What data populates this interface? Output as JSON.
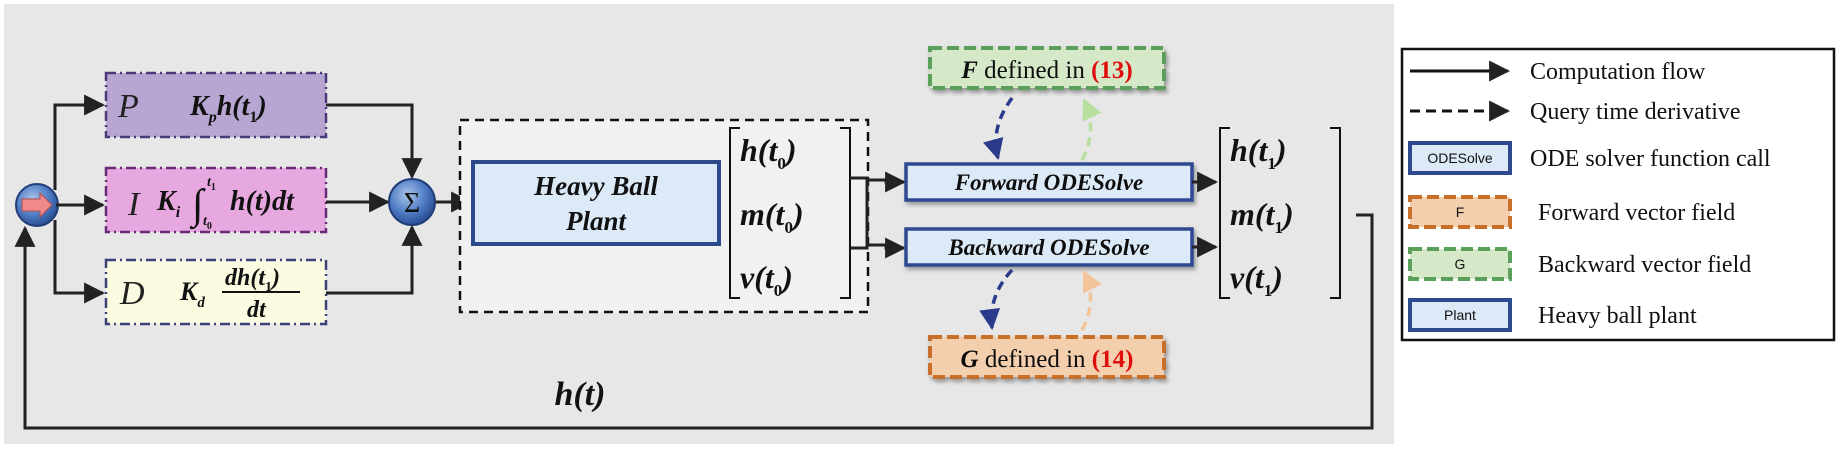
{
  "controller": {
    "p_letter": "P",
    "p_expr": "K",
    "p_sub": "p",
    "p_h": "h(t",
    "p_h_sub": "1",
    "p_close": ")",
    "i_letter": "I",
    "i_k": "K",
    "i_k_sub": "i",
    "i_int_upper": "t",
    "i_int_upper_sub": "1",
    "i_int_lower": "t",
    "i_int_lower_sub": "0",
    "i_body": "h(t)dt",
    "d_letter": "D",
    "d_k": "K",
    "d_k_sub": "d",
    "d_num": "dh(t",
    "d_num_sub": "1",
    "d_num_close": ")",
    "d_den": "dt",
    "sum_symbol": "Σ"
  },
  "plant": {
    "line1": "Heavy Ball",
    "line2": "Plant"
  },
  "state_in": {
    "rows": [
      {
        "var": "h(t",
        "sub": "0",
        "close": ")"
      },
      {
        "var": "m(t",
        "sub": "0",
        "close": ")"
      },
      {
        "var": "v(t",
        "sub": "0",
        "close": ")"
      }
    ]
  },
  "state_out": {
    "rows": [
      {
        "var": "h(t",
        "sub": "1",
        "close": ")"
      },
      {
        "var": "m(t",
        "sub": "1",
        "close": ")"
      },
      {
        "var": "v(t",
        "sub": "1",
        "close": ")"
      }
    ]
  },
  "solvers": {
    "forward": "Forward ODESolve",
    "backward": "Backward ODESolve"
  },
  "fields": {
    "f_symbol": "F",
    "f_text": " defined in ",
    "f_ref": "(13)",
    "g_symbol": "G",
    "g_text": " defined in ",
    "g_ref": "(14)"
  },
  "feedback_label": "h(t)",
  "legend": {
    "items": [
      {
        "symbol_text": "",
        "label": "Computation flow"
      },
      {
        "symbol_text": "",
        "label": "Query time derivative"
      },
      {
        "symbol_text": "ODESolve",
        "label": "ODE solver function call"
      },
      {
        "symbol_text": "F",
        "label": "Forward vector field"
      },
      {
        "symbol_text": "G",
        "label": "Backward vector field"
      },
      {
        "symbol_text": "Plant",
        "label": "Heavy ball plant"
      }
    ]
  },
  "colors": {
    "panel_bg": "#e7e7e7",
    "p_fill": "#b7a6d2",
    "p_stroke": "#4a3a78",
    "i_fill": "#e6a8df",
    "i_stroke": "#6a2a78",
    "d_fill": "#fbfbe2",
    "d_stroke": "#3a4278",
    "blue_fill": "#dce9f7",
    "blue_stroke": "#2e4a8f",
    "f_fill": "#d5e8c7",
    "f_stroke": "#5aa05a",
    "g_fill": "#f3cfae",
    "g_stroke": "#c8702a",
    "ref_red": "#e01010",
    "arrow_navy": "#2b3a8a",
    "arrow_lightgreen": "#b7dfa0",
    "arrow_peach": "#f3c49a"
  }
}
